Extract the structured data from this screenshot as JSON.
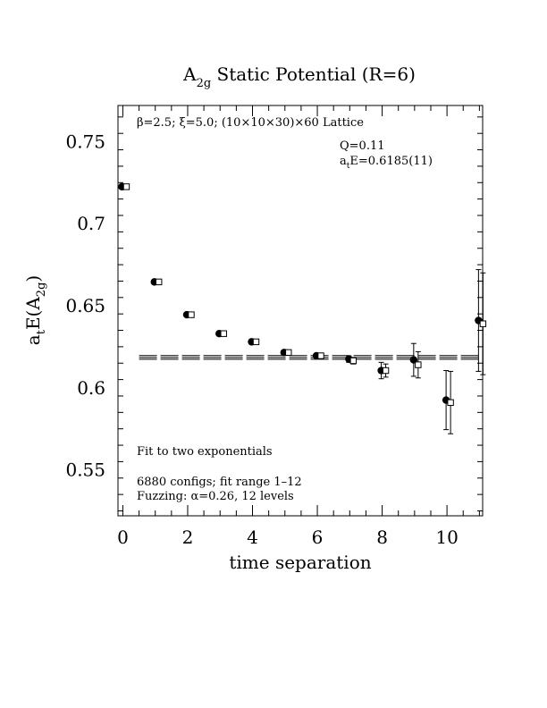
{
  "chart_data": {
    "type": "scatter",
    "title_main": "A",
    "title_sub": "2g",
    "title_rest": " Static Potential (R=6)",
    "xlabel": "time separation",
    "ylabel_main": "a",
    "ylabel_sub1": "t",
    "ylabel_mid": "E(A",
    "ylabel_sub2": "2g",
    "ylabel_end": ")",
    "xlim": [
      -0.15,
      11.1
    ],
    "ylim": [
      0.522,
      0.772
    ],
    "xticks": [
      0,
      2,
      4,
      6,
      8,
      10
    ],
    "xtick_labels": [
      "0",
      "2",
      "4",
      "6",
      "8",
      "10"
    ],
    "yticks": [
      0.55,
      0.6,
      0.65,
      0.7,
      0.75
    ],
    "ytick_labels": [
      "0.55",
      "0.6",
      "0.65",
      "0.7",
      "0.75"
    ],
    "annotations": {
      "lattice": "β=2.5; ξ=5.0; (10×10×30)×60 Lattice",
      "q": "Q=0.11",
      "energy_main": "a",
      "energy_sub": "t",
      "energy_rest": "E=0.6185(11)",
      "fit": "Fit to two exponentials",
      "configs": "6880 configs; fit range 1–12",
      "fuzzing": "Fuzzing: α=0.26, 12 levels"
    },
    "fit_line": {
      "value": 0.6185,
      "error": 0.0011,
      "x_range": [
        0.5,
        11.1
      ]
    },
    "series": [
      {
        "marker": "filled-circle",
        "points": [
          {
            "x": 0,
            "y": 0.7225,
            "err": 0.0005
          },
          {
            "x": 1,
            "y": 0.6645,
            "err": 0.0006
          },
          {
            "x": 2,
            "y": 0.6445,
            "err": 0.0007
          },
          {
            "x": 3,
            "y": 0.633,
            "err": 0.0008
          },
          {
            "x": 4,
            "y": 0.628,
            "err": 0.0009
          },
          {
            "x": 5,
            "y": 0.6215,
            "err": 0.001
          },
          {
            "x": 6,
            "y": 0.6195,
            "err": 0.0012
          },
          {
            "x": 7,
            "y": 0.6175,
            "err": 0.002
          },
          {
            "x": 8,
            "y": 0.6105,
            "err": 0.005
          },
          {
            "x": 9,
            "y": 0.617,
            "err": 0.01
          },
          {
            "x": 10,
            "y": 0.5925,
            "err": 0.018
          },
          {
            "x": 11,
            "y": 0.641,
            "err": 0.031
          }
        ]
      },
      {
        "marker": "open-square",
        "points": [
          {
            "x": 0,
            "y": 0.7225,
            "err": 0.0005
          },
          {
            "x": 1,
            "y": 0.6645,
            "err": 0.0006
          },
          {
            "x": 2,
            "y": 0.6445,
            "err": 0.0007
          },
          {
            "x": 3,
            "y": 0.633,
            "err": 0.0008
          },
          {
            "x": 4,
            "y": 0.628,
            "err": 0.0009
          },
          {
            "x": 5,
            "y": 0.6215,
            "err": 0.001
          },
          {
            "x": 6,
            "y": 0.6195,
            "err": 0.0012
          },
          {
            "x": 7,
            "y": 0.6165,
            "err": 0.002
          },
          {
            "x": 8,
            "y": 0.6105,
            "err": 0.004
          },
          {
            "x": 9,
            "y": 0.614,
            "err": 0.008
          },
          {
            "x": 10,
            "y": 0.591,
            "err": 0.019
          },
          {
            "x": 11,
            "y": 0.639,
            "err": 0.031
          }
        ]
      }
    ]
  }
}
